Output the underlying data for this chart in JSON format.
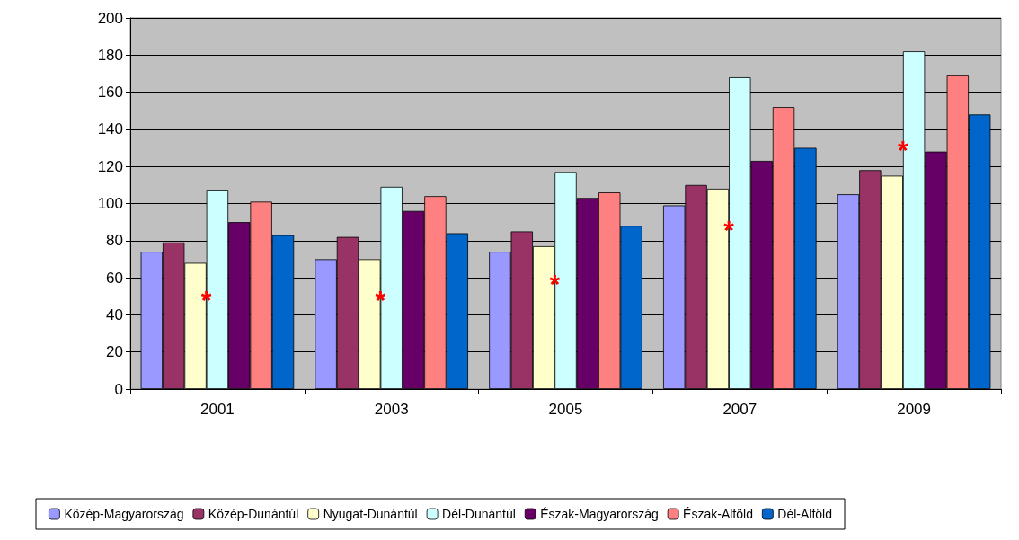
{
  "chart_data": {
    "type": "bar",
    "categories": [
      "2001",
      "2003",
      "2005",
      "2007",
      "2009"
    ],
    "series": [
      {
        "name": "Közép-Magyarország",
        "color": "#9999ff",
        "values": [
          74,
          70,
          74,
          99,
          105
        ]
      },
      {
        "name": "Közép-Dunántúl",
        "color": "#993366",
        "values": [
          79,
          82,
          85,
          110,
          118
        ]
      },
      {
        "name": "Nyugat-Dunántúl",
        "color": "#ffffcc",
        "values": [
          68,
          70,
          77,
          108,
          115
        ]
      },
      {
        "name": "Dél-Dunántúl",
        "color": "#ccffff",
        "values": [
          107,
          109,
          117,
          168,
          182
        ]
      },
      {
        "name": "Észak-Magyarország",
        "color": "#660066",
        "values": [
          90,
          96,
          103,
          123,
          128
        ]
      },
      {
        "name": "Észak-Alföld",
        "color": "#ff8080",
        "values": [
          101,
          104,
          106,
          152,
          169
        ]
      },
      {
        "name": "Dél-Alföld",
        "color": "#0066cc",
        "values": [
          83,
          84,
          88,
          130,
          148
        ]
      }
    ],
    "ylim": [
      0,
      200
    ],
    "yticks": [
      0,
      20,
      40,
      60,
      80,
      100,
      120,
      140,
      160,
      180,
      200
    ],
    "grid": "y",
    "legend": "bottom",
    "annotations": [
      "*",
      "*",
      "*",
      "*",
      "*"
    ]
  }
}
